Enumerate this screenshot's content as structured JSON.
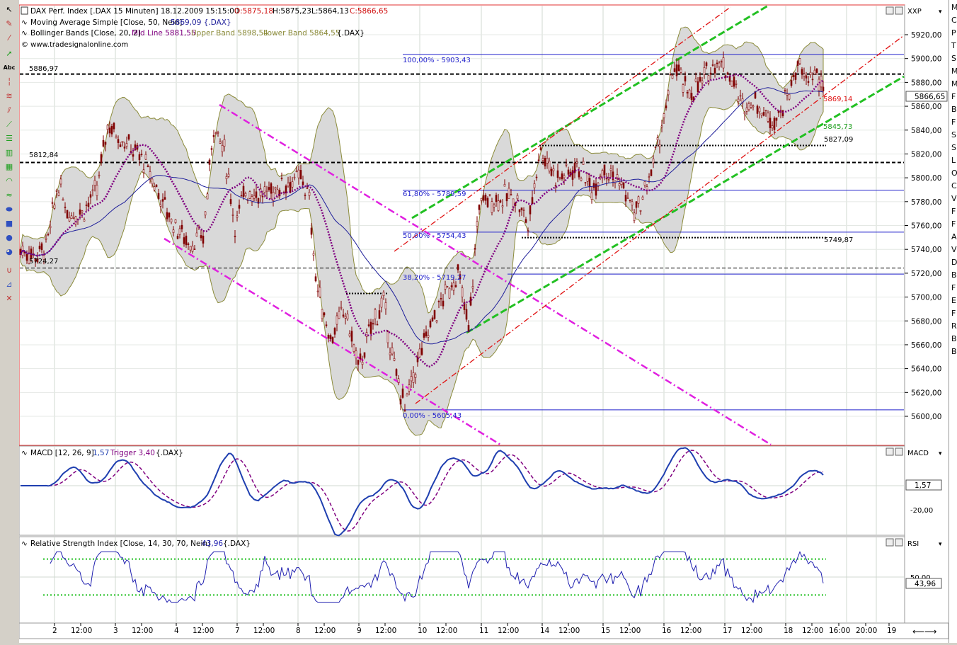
{
  "main_panel": {
    "header_lines": [
      "DAX Perf. Index [.DAX  15 Minuten] 18.12.2009 15:15:00",
      "Moving Average Simple [Close, 50, Nein]",
      "Bollinger Bands [Close, 20, 2]",
      "© www.tradesignalonline.com"
    ],
    "ohlc": {
      "o": "O:5875,18",
      "h": "H:5875,23",
      "l": "L:5864,13",
      "c": "C:5866,65"
    },
    "ma_value": "5869,09 {.DAX}",
    "bb": {
      "mid": "Mid Line 5881,55",
      "upper": "Upper Band 5898,54",
      "lower": "Lower Band 5864,55",
      "suffix": "{.DAX}"
    },
    "axis_label": "XXP",
    "current_price": "5866,65",
    "y_ticks": [
      "5920,00",
      "5900,00",
      "5880,00",
      "5860,00",
      "5840,00",
      "5820,00",
      "5800,00",
      "5780,00",
      "5760,00",
      "5740,00",
      "5720,00",
      "5700,00",
      "5680,00",
      "5660,00",
      "5640,00",
      "5620,00",
      "5600,00"
    ],
    "fib_labels": [
      "100,00% - 5903,43",
      "61,80% - 5789,59",
      "50,00% - 5754,43",
      "38,20% - 5719,27",
      "0,00% - 5605,43"
    ],
    "level_labels": [
      "5886,97",
      "5812,84",
      "5724,27",
      "5827,09",
      "5749,87",
      "5869,14",
      "5845,73"
    ]
  },
  "macd_panel": {
    "title": "MACD [12, 26, 9]",
    "value": "1,57",
    "trigger": "Trigger 3,40",
    "suffix": "{.DAX}",
    "axis_label": "MACD",
    "value_box": "1,57",
    "y_tick": "-20,00"
  },
  "rsi_panel": {
    "title": "Relative Strength Index [Close, 14, 30, 70, Nein]",
    "value": "43,96",
    "suffix": "{.DAX}",
    "axis_label": "RSI",
    "value_box": "43,96",
    "y_tick": "50,00"
  },
  "time_axis": [
    "2",
    "12:00",
    "3",
    "12:00",
    "4",
    "12:00",
    "7",
    "12:00",
    "8",
    "12:00",
    "9",
    "12:00",
    "10",
    "12:00",
    "11",
    "12:00",
    "14",
    "12:00",
    "15",
    "12:00",
    "16",
    "12:00",
    "17",
    "12:00",
    "18",
    "12:00",
    "16:00",
    "20:00",
    "19"
  ],
  "toolbar": {
    "text_tool": "Abc"
  },
  "right_strip_letters": [
    "M",
    "C",
    "P",
    "T",
    "S",
    "M",
    "M",
    "F",
    "B",
    "F",
    "S",
    "S",
    "L",
    "O",
    "C",
    "V",
    "F",
    "F",
    "A",
    "V",
    "D",
    "B",
    "F",
    "E",
    "F",
    "R",
    "B",
    "B"
  ],
  "colors": {
    "candle": "#800000",
    "ma": "#1e1e9a",
    "bb_fill": "#d9d9d9",
    "bb_edge": "#8b8b3a",
    "fib": "#2222cc",
    "magenta": "#e020e0",
    "green_dash": "#22c022",
    "red_dash": "#e01010",
    "macd_main": "#1f3fb0",
    "macd_trigger": "#800080",
    "rsi_line": "#2020b0",
    "rsi_bands": "#22c022"
  }
}
